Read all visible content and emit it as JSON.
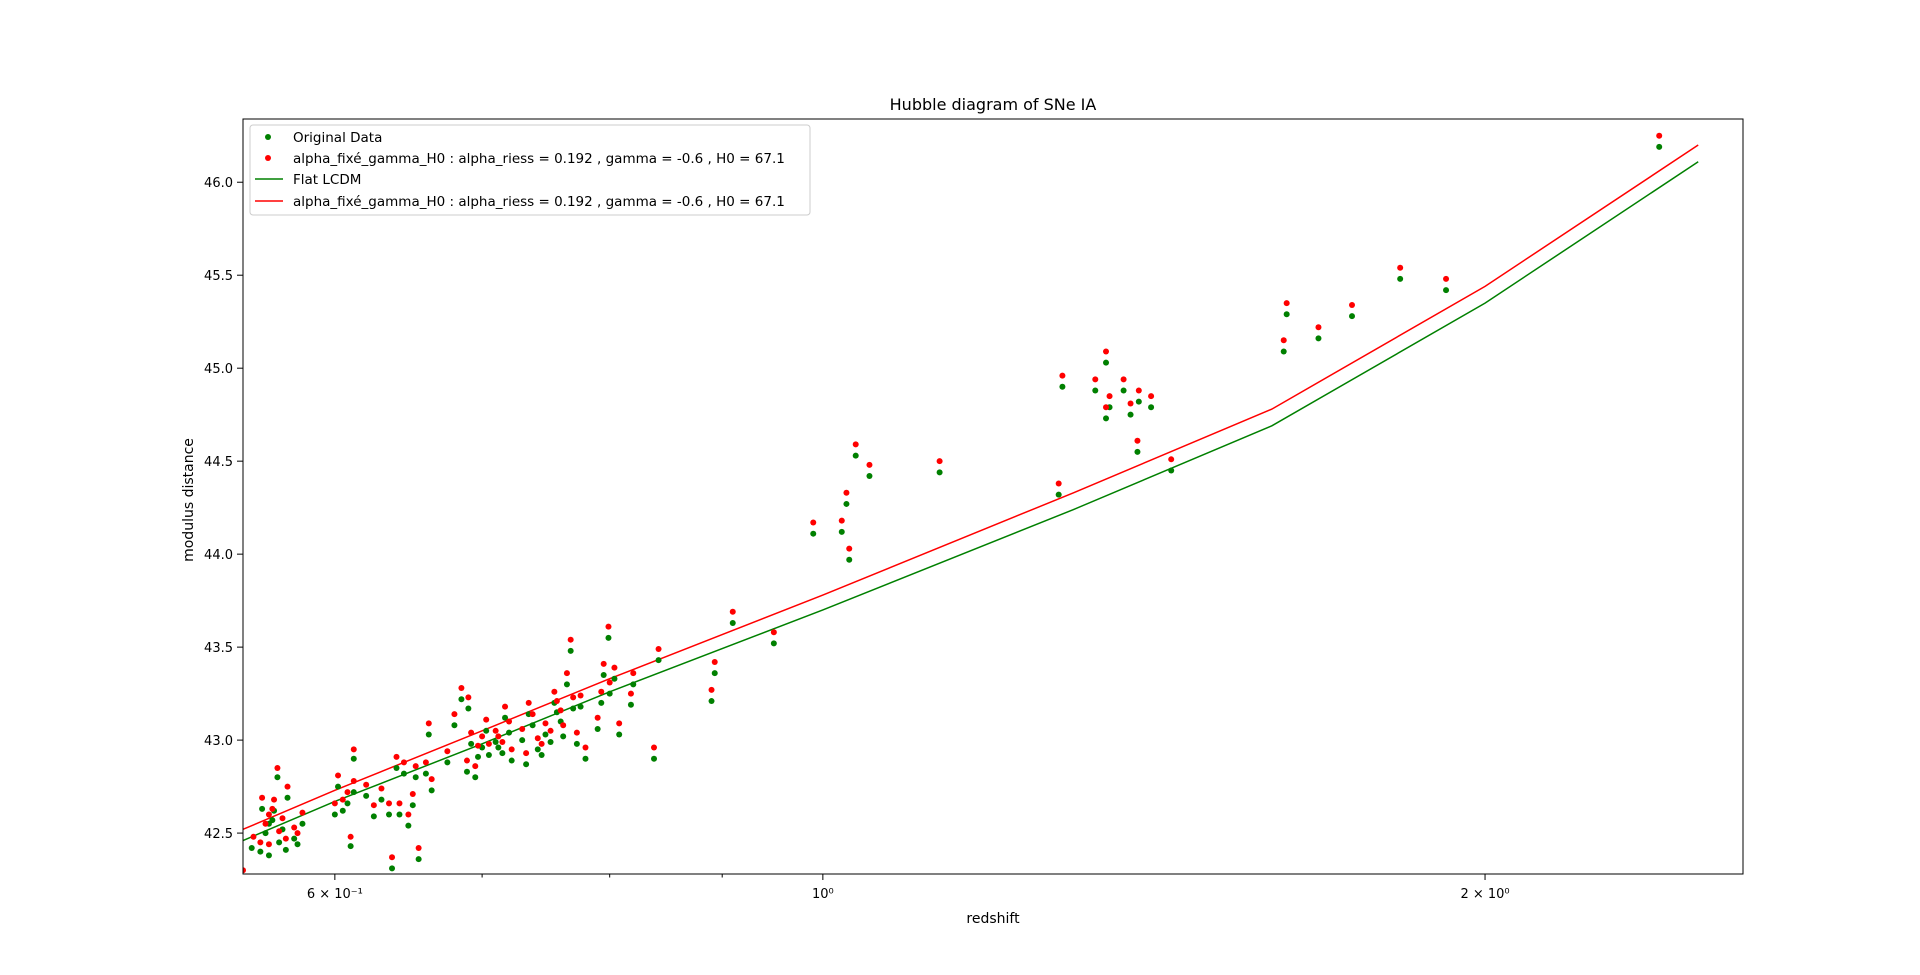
{
  "chart_data": {
    "type": "scatter",
    "title": "Hubble diagram of SNe IA",
    "xlabel": "redshift",
    "ylabel": "modulus distance",
    "xscale": "log",
    "xlim": [
      0.545,
      2.62
    ],
    "ylim": [
      42.28,
      46.34
    ],
    "grid": false,
    "legend_position": "top-left",
    "x_ticks": [
      {
        "value": 0.6,
        "label": "6 × 10⁻¹"
      },
      {
        "value": 1.0,
        "label": "10⁰"
      },
      {
        "value": 2.0,
        "label": "2 × 10⁰"
      }
    ],
    "x_minor_ticks": [
      0.7,
      0.8,
      0.9,
      3.0
    ],
    "y_ticks": [
      {
        "value": 42.5,
        "label": "42.5"
      },
      {
        "value": 43.0,
        "label": "43.0"
      },
      {
        "value": 43.5,
        "label": "43.5"
      },
      {
        "value": 44.0,
        "label": "44.0"
      },
      {
        "value": 44.5,
        "label": "44.5"
      },
      {
        "value": 45.0,
        "label": "45.0"
      },
      {
        "value": 45.5,
        "label": "45.5"
      },
      {
        "value": 46.0,
        "label": "46.0"
      }
    ],
    "legend": [
      {
        "label": "Original Data",
        "kind": "marker",
        "color": "#008000"
      },
      {
        "label": "alpha_fixé_gamma_H0 : alpha_riess = 0.192 , gamma = -0.6 , H0 = 67.1",
        "kind": "marker",
        "color": "#ff0000"
      },
      {
        "label": "Flat LCDM",
        "kind": "line",
        "color": "#008000"
      },
      {
        "label": "alpha_fixé_gamma_H0 : alpha_riess = 0.192 , gamma = -0.6 , H0 = 67.1",
        "kind": "line",
        "color": "#ff0000"
      }
    ],
    "lines": [
      {
        "color": "#008000",
        "x": [
          0.545,
          0.6,
          0.7,
          0.8,
          1.0,
          1.3,
          1.6,
          2.0,
          2.5
        ],
        "y": [
          42.46,
          42.67,
          42.98,
          43.26,
          43.7,
          44.24,
          44.69,
          45.35,
          46.11
        ]
      },
      {
        "color": "#ff0000",
        "x": [
          0.545,
          0.6,
          0.7,
          0.8,
          1.0,
          1.3,
          1.6,
          2.0,
          2.5
        ],
        "y": [
          42.52,
          42.73,
          43.05,
          43.33,
          43.78,
          44.33,
          44.78,
          45.44,
          46.2
        ]
      }
    ],
    "series": [
      {
        "color": "#008000",
        "points": [
          [
            0.55,
            42.42
          ],
          [
            0.555,
            42.4
          ],
          [
            0.556,
            42.63
          ],
          [
            0.558,
            42.5
          ],
          [
            0.56,
            42.55
          ],
          [
            0.56,
            42.38
          ],
          [
            0.562,
            42.57
          ],
          [
            0.563,
            42.62
          ],
          [
            0.565,
            42.8
          ],
          [
            0.566,
            42.45
          ],
          [
            0.568,
            42.52
          ],
          [
            0.57,
            42.41
          ],
          [
            0.571,
            42.69
          ],
          [
            0.575,
            42.47
          ],
          [
            0.577,
            42.44
          ],
          [
            0.58,
            42.55
          ],
          [
            0.6,
            42.6
          ],
          [
            0.602,
            42.75
          ],
          [
            0.605,
            42.62
          ],
          [
            0.608,
            42.66
          ],
          [
            0.61,
            42.43
          ],
          [
            0.612,
            42.72
          ],
          [
            0.612,
            42.9
          ],
          [
            0.62,
            42.7
          ],
          [
            0.625,
            42.59
          ],
          [
            0.63,
            42.68
          ],
          [
            0.635,
            42.6
          ],
          [
            0.637,
            42.31
          ],
          [
            0.64,
            42.85
          ],
          [
            0.642,
            42.6
          ],
          [
            0.645,
            42.82
          ],
          [
            0.648,
            42.54
          ],
          [
            0.651,
            42.65
          ],
          [
            0.653,
            42.8
          ],
          [
            0.655,
            42.36
          ],
          [
            0.66,
            42.82
          ],
          [
            0.662,
            43.03
          ],
          [
            0.664,
            42.73
          ],
          [
            0.675,
            42.88
          ],
          [
            0.68,
            43.08
          ],
          [
            0.685,
            43.22
          ],
          [
            0.689,
            42.83
          ],
          [
            0.69,
            43.17
          ],
          [
            0.692,
            42.98
          ],
          [
            0.695,
            42.8
          ],
          [
            0.697,
            42.91
          ],
          [
            0.7,
            42.96
          ],
          [
            0.703,
            43.05
          ],
          [
            0.705,
            42.92
          ],
          [
            0.71,
            42.99
          ],
          [
            0.712,
            42.96
          ],
          [
            0.715,
            42.93
          ],
          [
            0.717,
            43.12
          ],
          [
            0.72,
            43.04
          ],
          [
            0.722,
            42.89
          ],
          [
            0.73,
            43.0
          ],
          [
            0.733,
            42.87
          ],
          [
            0.735,
            43.14
          ],
          [
            0.738,
            43.08
          ],
          [
            0.742,
            42.95
          ],
          [
            0.745,
            42.92
          ],
          [
            0.748,
            43.03
          ],
          [
            0.752,
            42.99
          ],
          [
            0.755,
            43.2
          ],
          [
            0.757,
            43.15
          ],
          [
            0.76,
            43.1
          ],
          [
            0.762,
            43.02
          ],
          [
            0.765,
            43.3
          ],
          [
            0.768,
            43.48
          ],
          [
            0.77,
            43.17
          ],
          [
            0.773,
            42.98
          ],
          [
            0.776,
            43.18
          ],
          [
            0.78,
            42.9
          ],
          [
            0.79,
            43.06
          ],
          [
            0.793,
            43.2
          ],
          [
            0.795,
            43.35
          ],
          [
            0.799,
            43.55
          ],
          [
            0.8,
            43.25
          ],
          [
            0.804,
            43.33
          ],
          [
            0.808,
            43.03
          ],
          [
            0.818,
            43.19
          ],
          [
            0.82,
            43.3
          ],
          [
            0.838,
            42.9
          ],
          [
            0.842,
            43.43
          ],
          [
            0.89,
            43.21
          ],
          [
            0.893,
            43.36
          ],
          [
            0.91,
            43.63
          ],
          [
            0.95,
            43.52
          ],
          [
            0.99,
            44.11
          ],
          [
            1.02,
            44.12
          ],
          [
            1.025,
            44.27
          ],
          [
            1.028,
            43.97
          ],
          [
            1.035,
            44.53
          ],
          [
            1.05,
            44.42
          ],
          [
            1.13,
            44.44
          ],
          [
            1.28,
            44.32
          ],
          [
            1.285,
            44.9
          ],
          [
            1.33,
            44.88
          ],
          [
            1.345,
            44.73
          ],
          [
            1.345,
            45.03
          ],
          [
            1.35,
            44.79
          ],
          [
            1.37,
            44.88
          ],
          [
            1.38,
            44.75
          ],
          [
            1.39,
            44.55
          ],
          [
            1.392,
            44.82
          ],
          [
            1.41,
            44.79
          ],
          [
            1.44,
            44.45
          ],
          [
            1.62,
            45.09
          ],
          [
            1.625,
            45.29
          ],
          [
            1.68,
            45.16
          ],
          [
            1.74,
            45.28
          ],
          [
            1.83,
            45.48
          ],
          [
            1.92,
            45.42
          ],
          [
            2.4,
            46.19
          ]
        ]
      },
      {
        "color": "#ff0000",
        "points": [
          [
            0.545,
            42.3
          ],
          [
            0.551,
            42.48
          ],
          [
            0.555,
            42.45
          ],
          [
            0.556,
            42.69
          ],
          [
            0.558,
            42.55
          ],
          [
            0.56,
            42.6
          ],
          [
            0.56,
            42.44
          ],
          [
            0.562,
            42.63
          ],
          [
            0.563,
            42.68
          ],
          [
            0.565,
            42.85
          ],
          [
            0.566,
            42.51
          ],
          [
            0.568,
            42.58
          ],
          [
            0.57,
            42.47
          ],
          [
            0.571,
            42.75
          ],
          [
            0.575,
            42.53
          ],
          [
            0.577,
            42.5
          ],
          [
            0.58,
            42.61
          ],
          [
            0.6,
            42.66
          ],
          [
            0.602,
            42.81
          ],
          [
            0.605,
            42.68
          ],
          [
            0.608,
            42.72
          ],
          [
            0.61,
            42.48
          ],
          [
            0.612,
            42.78
          ],
          [
            0.612,
            42.95
          ],
          [
            0.62,
            42.76
          ],
          [
            0.625,
            42.65
          ],
          [
            0.63,
            42.74
          ],
          [
            0.635,
            42.66
          ],
          [
            0.637,
            42.37
          ],
          [
            0.64,
            42.91
          ],
          [
            0.642,
            42.66
          ],
          [
            0.645,
            42.88
          ],
          [
            0.648,
            42.6
          ],
          [
            0.651,
            42.71
          ],
          [
            0.653,
            42.86
          ],
          [
            0.655,
            42.42
          ],
          [
            0.66,
            42.88
          ],
          [
            0.662,
            43.09
          ],
          [
            0.664,
            42.79
          ],
          [
            0.675,
            42.94
          ],
          [
            0.68,
            43.14
          ],
          [
            0.685,
            43.28
          ],
          [
            0.689,
            42.89
          ],
          [
            0.69,
            43.23
          ],
          [
            0.692,
            43.04
          ],
          [
            0.695,
            42.86
          ],
          [
            0.697,
            42.97
          ],
          [
            0.7,
            43.02
          ],
          [
            0.703,
            43.11
          ],
          [
            0.705,
            42.98
          ],
          [
            0.71,
            43.05
          ],
          [
            0.712,
            43.02
          ],
          [
            0.715,
            42.99
          ],
          [
            0.717,
            43.18
          ],
          [
            0.72,
            43.1
          ],
          [
            0.722,
            42.95
          ],
          [
            0.73,
            43.06
          ],
          [
            0.733,
            42.93
          ],
          [
            0.735,
            43.2
          ],
          [
            0.738,
            43.14
          ],
          [
            0.742,
            43.01
          ],
          [
            0.745,
            42.98
          ],
          [
            0.748,
            43.09
          ],
          [
            0.752,
            43.05
          ],
          [
            0.755,
            43.26
          ],
          [
            0.757,
            43.21
          ],
          [
            0.76,
            43.16
          ],
          [
            0.762,
            43.08
          ],
          [
            0.765,
            43.36
          ],
          [
            0.768,
            43.54
          ],
          [
            0.77,
            43.23
          ],
          [
            0.773,
            43.04
          ],
          [
            0.776,
            43.24
          ],
          [
            0.78,
            42.96
          ],
          [
            0.79,
            43.12
          ],
          [
            0.793,
            43.26
          ],
          [
            0.795,
            43.41
          ],
          [
            0.799,
            43.61
          ],
          [
            0.8,
            43.31
          ],
          [
            0.804,
            43.39
          ],
          [
            0.808,
            43.09
          ],
          [
            0.818,
            43.25
          ],
          [
            0.82,
            43.36
          ],
          [
            0.838,
            42.96
          ],
          [
            0.842,
            43.49
          ],
          [
            0.89,
            43.27
          ],
          [
            0.893,
            43.42
          ],
          [
            0.91,
            43.69
          ],
          [
            0.95,
            43.58
          ],
          [
            0.99,
            44.17
          ],
          [
            1.02,
            44.18
          ],
          [
            1.025,
            44.33
          ],
          [
            1.028,
            44.03
          ],
          [
            1.035,
            44.59
          ],
          [
            1.05,
            44.48
          ],
          [
            1.13,
            44.5
          ],
          [
            1.28,
            44.38
          ],
          [
            1.285,
            44.96
          ],
          [
            1.33,
            44.94
          ],
          [
            1.345,
            44.79
          ],
          [
            1.345,
            45.09
          ],
          [
            1.35,
            44.85
          ],
          [
            1.37,
            44.94
          ],
          [
            1.38,
            44.81
          ],
          [
            1.39,
            44.61
          ],
          [
            1.392,
            44.88
          ],
          [
            1.41,
            44.85
          ],
          [
            1.44,
            44.51
          ],
          [
            1.62,
            45.15
          ],
          [
            1.625,
            45.35
          ],
          [
            1.68,
            45.22
          ],
          [
            1.74,
            45.34
          ],
          [
            1.83,
            45.54
          ],
          [
            1.92,
            45.48
          ],
          [
            2.4,
            46.25
          ]
        ]
      }
    ]
  }
}
